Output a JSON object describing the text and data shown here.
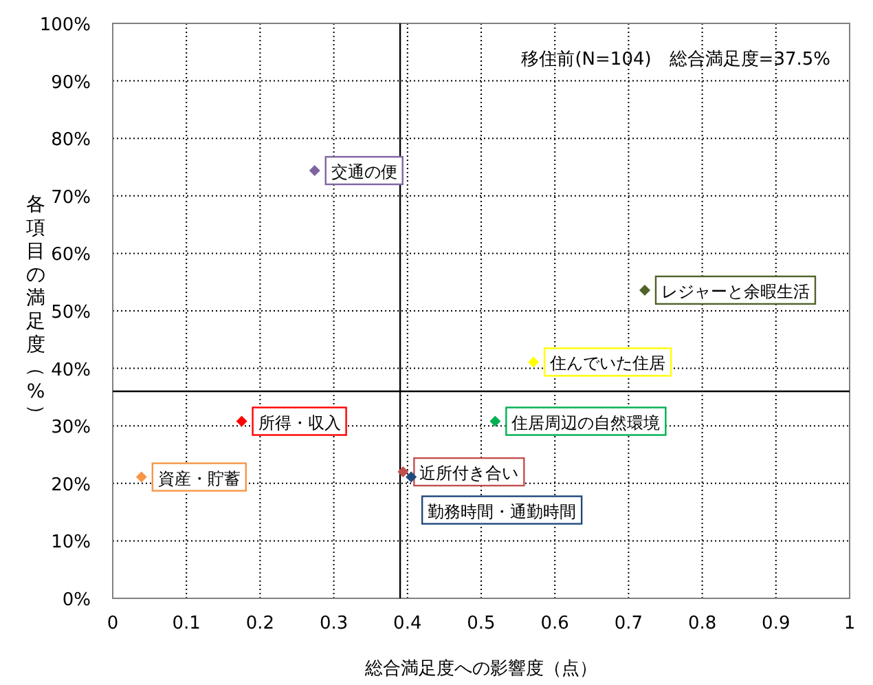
{
  "chart_data": {
    "type": "scatter",
    "xlabel": "総合満足度への影響度（点）",
    "ylabel": "各項目の満足度（%）",
    "annotations": [
      "移住前(N=104)　総合満足度=37.5%"
    ],
    "xlim": [
      0,
      1
    ],
    "xticks": [
      0,
      0.1,
      0.2,
      0.3,
      0.4,
      0.5,
      0.6,
      0.7,
      0.8,
      0.9,
      1
    ],
    "ylim": [
      0,
      100
    ],
    "yticks": [
      {
        "value": 0,
        "label": "0%"
      },
      {
        "value": 10,
        "label": "10%"
      },
      {
        "value": 20,
        "label": "20%"
      },
      {
        "value": 30,
        "label": "30%"
      },
      {
        "value": 40,
        "label": "40%"
      },
      {
        "value": 50,
        "label": "50%"
      },
      {
        "value": 60,
        "label": "60%"
      },
      {
        "value": 70,
        "label": "70%"
      },
      {
        "value": 80,
        "label": "80%"
      },
      {
        "value": 90,
        "label": "90%"
      },
      {
        "value": 100,
        "label": "100%"
      }
    ],
    "grid": true,
    "marker": "diamond",
    "ref_lines": [
      {
        "axis": "x",
        "value": 0.39,
        "color": "#000000"
      },
      {
        "axis": "y",
        "value": 36,
        "color": "#000000"
      }
    ],
    "series": [
      {
        "name": "交通の便",
        "color": "#8064a2",
        "x": [
          0.274
        ],
        "values": [
          74.4
        ]
      },
      {
        "name": "レジャーと余暇生活",
        "color": "#4f6228",
        "x": [
          0.722
        ],
        "values": [
          53.6
        ]
      },
      {
        "name": "住んでいた住居",
        "color": "#ffff00",
        "x": [
          0.571
        ],
        "values": [
          41.1
        ]
      },
      {
        "name": "所得・収入",
        "color": "#ff0000",
        "x": [
          0.175
        ],
        "values": [
          30.8
        ]
      },
      {
        "name": "住居周辺の自然環境",
        "color": "#00b050",
        "x": [
          0.519
        ],
        "values": [
          30.8
        ]
      },
      {
        "name": "資産・貯蓄",
        "color": "#f79646",
        "x": [
          0.039
        ],
        "values": [
          21.1
        ]
      },
      {
        "name": "近所付き合い",
        "color": "#c0504d",
        "x": [
          0.394
        ],
        "values": [
          22.0
        ]
      },
      {
        "name": "勤務時間・通勤時間",
        "color": "#1f497d",
        "x": [
          0.405
        ],
        "values": [
          21.1
        ]
      }
    ]
  }
}
